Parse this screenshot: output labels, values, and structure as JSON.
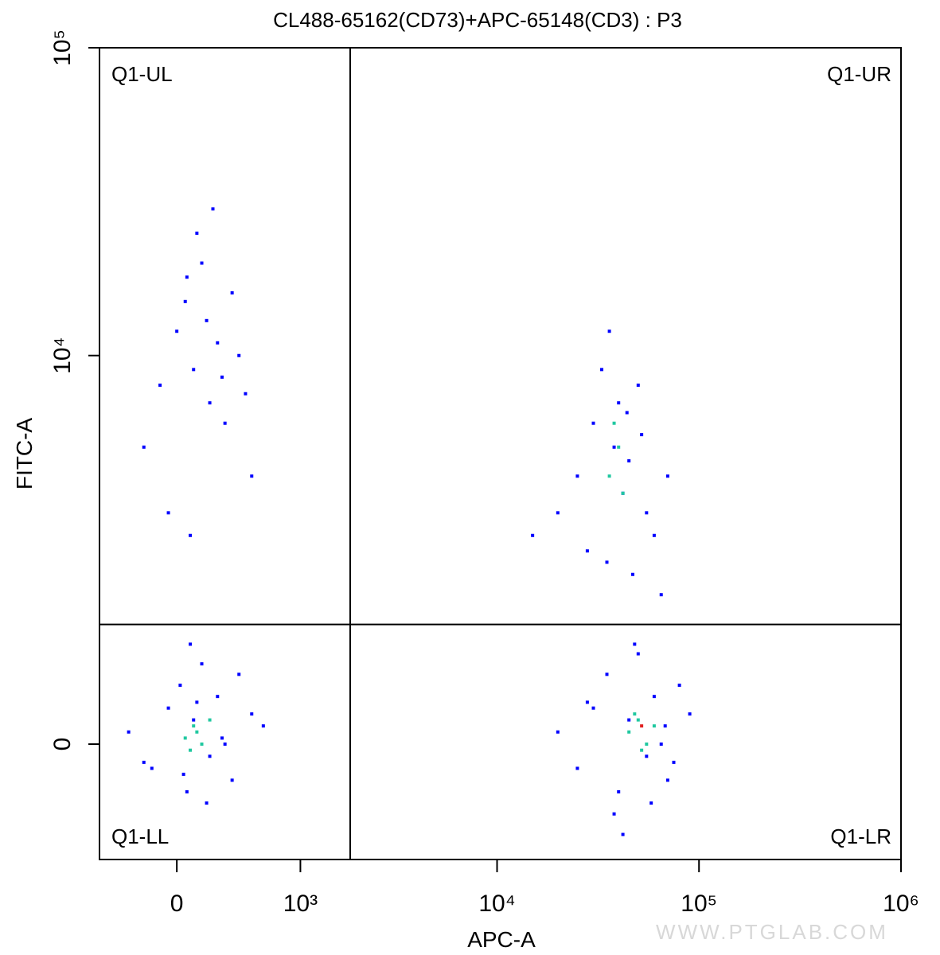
{
  "chart_data": {
    "type": "scatter",
    "title": "CL488-65162(CD73)+APC-65148(CD3) : P3",
    "x_label": "APC-A",
    "y_label": "FITC-A",
    "xlim": [
      -520,
      1000000
    ],
    "ylim": [
      -1070,
      100000
    ],
    "xticks": [
      0,
      {
        "value": 1000,
        "label": "10³"
      },
      {
        "value": 10000,
        "label": "10⁴"
      },
      {
        "value": 100000,
        "label": "10⁵"
      },
      {
        "value": 1000000,
        "label": "10⁶"
      }
    ],
    "yticks": [
      0,
      {
        "value": 10000,
        "label": "10⁴"
      },
      {
        "value": 100000,
        "label": "10⁵"
      }
    ],
    "gate_x": 1840,
    "gate_y": 1120,
    "quadrant_labels": [
      "Q1-UL",
      "Q1-UR",
      "Q1-LL",
      "Q1-LR"
    ],
    "watermark": "WWW.PTGLAB.COM",
    "series": [
      {
        "color": "#0000ff",
        "x": [
          -300,
          -150,
          -50,
          20,
          60,
          100,
          150,
          200,
          250,
          300,
          350,
          400,
          500,
          600,
          -200,
          80,
          180,
          280,
          120,
          40,
          20000,
          25000,
          30000,
          35000,
          40000,
          45000,
          50000,
          55000,
          60000,
          65000,
          70000,
          80000,
          90000,
          38000,
          48000,
          58000,
          68000,
          28000,
          42000,
          75000,
          15000,
          20000,
          25000,
          30000,
          35000,
          38000,
          40000,
          42000,
          45000,
          50000,
          55000,
          60000,
          70000,
          33000,
          47000,
          28000,
          36000,
          52000,
          44000,
          65000,
          -200,
          -100,
          0,
          50,
          100,
          150,
          200,
          250,
          300,
          400,
          500,
          -50,
          120,
          180,
          280,
          350,
          80,
          220,
          450,
          60
        ],
        "y": [
          100,
          -200,
          300,
          500,
          -400,
          200,
          700,
          -100,
          400,
          0,
          -300,
          600,
          250,
          150,
          -150,
          900,
          -500,
          50,
          350,
          -250,
          100,
          -200,
          300,
          600,
          -400,
          200,
          800,
          -100,
          400,
          0,
          -300,
          500,
          250,
          -600,
          900,
          -500,
          150,
          350,
          -800,
          -150,
          2500,
          3000,
          4000,
          6000,
          2000,
          5000,
          7000,
          3500,
          4500,
          8000,
          3000,
          2500,
          4000,
          9000,
          1800,
          2200,
          12000,
          5500,
          6500,
          1500,
          5000,
          8000,
          12000,
          15000,
          9000,
          20000,
          7000,
          11000,
          6000,
          10000,
          4000,
          3000,
          25000,
          13000,
          8500,
          16000,
          2500,
          30000,
          7500,
          18000
        ]
      },
      {
        "color": "#20c8a0",
        "x": [
          50,
          100,
          150,
          200,
          120,
          80,
          45000,
          50000,
          55000,
          60000,
          52000,
          48000,
          36000,
          40000,
          42000,
          38000
        ],
        "y": [
          50,
          150,
          0,
          200,
          100,
          -50,
          100,
          200,
          0,
          150,
          -50,
          250,
          4000,
          5000,
          3500,
          6000
        ]
      },
      {
        "color": "#e02020",
        "x": [
          52000
        ],
        "y": [
          150
        ]
      }
    ]
  }
}
